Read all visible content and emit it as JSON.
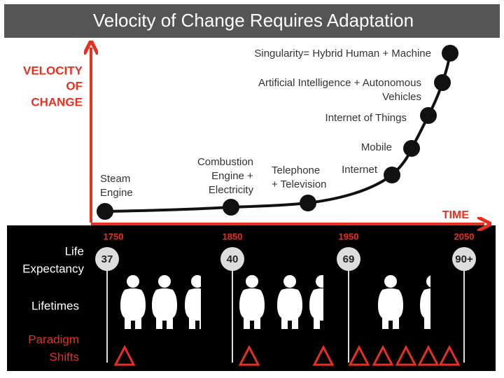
{
  "title": "Velocity of Change Requires Adaptation",
  "y_axis_label": [
    "VELOCITY",
    "OF",
    "CHANGE"
  ],
  "x_axis_label": "TIME",
  "milestones": [
    {
      "lines": [
        "Steam",
        "Engine"
      ]
    },
    {
      "lines": [
        "Combustion",
        "Engine +",
        "Electricity"
      ]
    },
    {
      "lines": [
        "Telephone",
        "+ Television"
      ]
    },
    {
      "lines": [
        "Internet"
      ]
    },
    {
      "lines": [
        "Mobile"
      ]
    },
    {
      "lines": [
        "Internet of Things"
      ]
    },
    {
      "lines": [
        "Artificial Intelligence  + Autonomous",
        "Vehicles"
      ]
    },
    {
      "lines": [
        "Singularity= Hybrid Human + Machine"
      ]
    }
  ],
  "timeline": {
    "years": [
      "1750",
      "1850",
      "1950",
      "2050"
    ],
    "life_expectancy": [
      "37",
      "40",
      "69",
      "90+"
    ],
    "row_labels": {
      "life_expectancy": [
        "Life",
        "Expectancy"
      ],
      "lifetimes": "Lifetimes",
      "paradigm_shifts": [
        "Paradigm",
        "Shifts"
      ]
    }
  }
}
